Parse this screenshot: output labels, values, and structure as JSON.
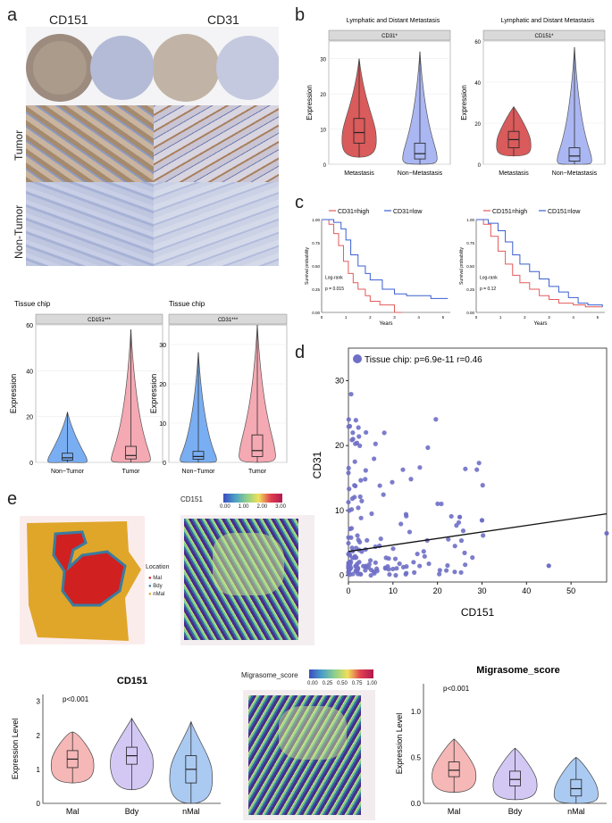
{
  "panels": {
    "a": "a",
    "b": "b",
    "c": "c",
    "d": "d",
    "e": "e"
  },
  "panel_a": {
    "col1": "CD151",
    "col2": "CD31",
    "row1": "Tumor",
    "row2": "Non-Tumor"
  },
  "chart_data": [
    {
      "id": "b1",
      "type": "violin",
      "title": "Lymphatic and Distant Metastasis",
      "strip": "CD31*",
      "ylabel": "Expression",
      "categories": [
        "Metastasis",
        "Non−Metastasis"
      ],
      "ylim": [
        0,
        35
      ],
      "yticks": [
        "0",
        "10",
        "20",
        "30"
      ],
      "box": [
        {
          "min": 2,
          "q1": 6,
          "median": 9,
          "q3": 13,
          "max": 30
        },
        {
          "min": 0,
          "q1": 1.5,
          "median": 3,
          "q3": 6,
          "max": 32
        }
      ]
    },
    {
      "id": "b2",
      "type": "violin",
      "title": "Lymphatic and Distant Metastasis",
      "strip": "CD151*",
      "ylabel": "Expression",
      "categories": [
        "Metastasis",
        "Non−Metastasis"
      ],
      "ylim": [
        0,
        60
      ],
      "yticks": [
        "0",
        "20",
        "40",
        "60"
      ],
      "box": [
        {
          "min": 4,
          "q1": 8,
          "median": 12,
          "q3": 16,
          "max": 28
        },
        {
          "min": 0,
          "q1": 1.5,
          "median": 4,
          "q3": 8,
          "max": 57
        }
      ]
    },
    {
      "id": "c1",
      "type": "line",
      "xlabel": "Years",
      "ylabel": "Survival probability",
      "legend": [
        "CD31=high",
        "CD31=low"
      ],
      "stat1": "Log-rank",
      "stat2": "p = 0.015",
      "xticks": [
        "0",
        "1",
        "2",
        "3",
        "4",
        "5"
      ],
      "yticks": [
        "0.00",
        "0.25",
        "0.50",
        "0.75",
        "1.00"
      ],
      "series": [
        {
          "name": "CD31=high",
          "x": [
            0,
            0.3,
            0.5,
            0.7,
            0.9,
            1.1,
            1.3,
            1.5,
            1.8,
            2.0,
            2.4,
            2.7,
            3.0,
            3.3
          ],
          "y": [
            1,
            0.95,
            0.85,
            0.72,
            0.55,
            0.42,
            0.32,
            0.25,
            0.18,
            0.12,
            0.08,
            0.08,
            0.0,
            0.0
          ]
        },
        {
          "name": "CD31=low",
          "x": [
            0,
            0.5,
            0.8,
            1.0,
            1.2,
            1.5,
            1.8,
            2.0,
            2.5,
            3.0,
            3.5,
            4.0,
            4.5,
            5.2
          ],
          "y": [
            1,
            0.97,
            0.9,
            0.78,
            0.62,
            0.5,
            0.42,
            0.35,
            0.25,
            0.2,
            0.18,
            0.18,
            0.15,
            0.15
          ]
        }
      ]
    },
    {
      "id": "c2",
      "type": "line",
      "xlabel": "Years",
      "ylabel": "Survival probability",
      "legend": [
        "CD151=high",
        "CD151=low"
      ],
      "stat1": "Log-rank",
      "stat2": "p = 0.12",
      "xticks": [
        "0",
        "1",
        "2",
        "3",
        "4",
        "5"
      ],
      "yticks": [
        "0.00",
        "0.25",
        "0.50",
        "0.75",
        "1.00"
      ],
      "series": [
        {
          "name": "CD151=high",
          "x": [
            0,
            0.3,
            0.6,
            0.9,
            1.2,
            1.5,
            1.8,
            2.2,
            2.6,
            3.0,
            3.4,
            4.0,
            4.5,
            5.2
          ],
          "y": [
            1,
            0.95,
            0.82,
            0.66,
            0.52,
            0.4,
            0.32,
            0.25,
            0.18,
            0.14,
            0.1,
            0.08,
            0.06,
            0.06
          ]
        },
        {
          "name": "CD151=low",
          "x": [
            0,
            0.5,
            0.9,
            1.2,
            1.5,
            1.8,
            2.2,
            2.6,
            3.0,
            3.4,
            3.8,
            4.2,
            4.6,
            5.2
          ],
          "y": [
            1,
            0.96,
            0.88,
            0.76,
            0.62,
            0.52,
            0.44,
            0.36,
            0.28,
            0.22,
            0.16,
            0.1,
            0.08,
            0.06
          ]
        }
      ]
    },
    {
      "id": "a1",
      "type": "violin",
      "title": "Tissue chip",
      "strip": "CD151***",
      "ylabel": "Expression",
      "categories": [
        "Non−Tumor",
        "Tumor"
      ],
      "ylim": [
        0,
        60
      ],
      "yticks": [
        "0",
        "20",
        "40",
        "60"
      ],
      "box": [
        {
          "min": 0,
          "q1": 1,
          "median": 2,
          "q3": 4,
          "max": 22
        },
        {
          "min": 0,
          "q1": 1.5,
          "median": 3,
          "q3": 7,
          "max": 58
        }
      ]
    },
    {
      "id": "a2",
      "type": "violin",
      "title": "Tissue chip",
      "strip": "CD31***",
      "ylabel": "Expression",
      "categories": [
        "Non−Tumor",
        "Tumor"
      ],
      "ylim": [
        0,
        35
      ],
      "yticks": [
        "0",
        "10",
        "20",
        "30"
      ],
      "box": [
        {
          "min": 0,
          "q1": 0.8,
          "median": 1.5,
          "q3": 2.8,
          "max": 28
        },
        {
          "min": 0,
          "q1": 1.5,
          "median": 3,
          "q3": 7,
          "max": 35
        }
      ]
    },
    {
      "id": "d",
      "type": "scatter",
      "legend": "Tissue chip: p=6.9e-11 r=0.46",
      "xlabel": "CD151",
      "ylabel": "CD31",
      "xticks": [
        "0",
        "10",
        "20",
        "30",
        "40",
        "50"
      ],
      "yticks": [
        "0",
        "10",
        "20",
        "30"
      ],
      "xlim": [
        0,
        58
      ],
      "ylim": [
        -1,
        35
      ],
      "fit": {
        "intercept": 3.7,
        "slope": 0.1
      }
    },
    {
      "id": "e1",
      "type": "violin",
      "title": "CD151",
      "stat": "p<0.001",
      "ylabel": "Expression Level",
      "categories": [
        "Mal",
        "Bdy",
        "nMal"
      ],
      "ylim": [
        0,
        3.2
      ],
      "yticks": [
        "0",
        "1",
        "2",
        "3"
      ],
      "box": [
        {
          "min": 0.6,
          "q1": 1.05,
          "median": 1.3,
          "q3": 1.55,
          "max": 2.1
        },
        {
          "min": 0.4,
          "q1": 1.15,
          "median": 1.4,
          "q3": 1.65,
          "max": 2.5
        },
        {
          "min": 0,
          "q1": 0.6,
          "median": 1.0,
          "q3": 1.4,
          "max": 2.4
        }
      ]
    },
    {
      "id": "e2",
      "type": "violin",
      "title": "Migrasome_score",
      "stat": "p<0.001",
      "ylabel": "Expression Level",
      "categories": [
        "Mal",
        "Bdy",
        "nMal"
      ],
      "ylim": [
        0,
        1.3
      ],
      "yticks": [
        "0.0",
        "0.5",
        "1.0"
      ],
      "box": [
        {
          "min": 0.12,
          "q1": 0.29,
          "median": 0.36,
          "q3": 0.45,
          "max": 0.7
        },
        {
          "min": 0.04,
          "q1": 0.19,
          "median": 0.26,
          "q3": 0.35,
          "max": 0.6
        },
        {
          "min": 0,
          "q1": 0.08,
          "median": 0.16,
          "q3": 0.26,
          "max": 0.5
        }
      ]
    }
  ],
  "panel_e": {
    "location_title": "Location",
    "location_items": [
      "Mal",
      "Bdy",
      "nMal"
    ],
    "cd151_title": "CD151",
    "cd151_ticks": [
      "0.00",
      "1.00",
      "2.00",
      "3.00"
    ],
    "migrasome_title": "Migrasome_score",
    "migrasome_ticks": [
      "0.00",
      "0.25",
      "0.50",
      "0.75",
      "1.00"
    ]
  },
  "colors": {
    "red": "#e35a5a",
    "blue": "#7b8ef0",
    "pink": "#f5b8b8",
    "lavender": "#cfc8f2",
    "lightblue": "#a6c8f0",
    "scatter": "#6f6fc7"
  }
}
